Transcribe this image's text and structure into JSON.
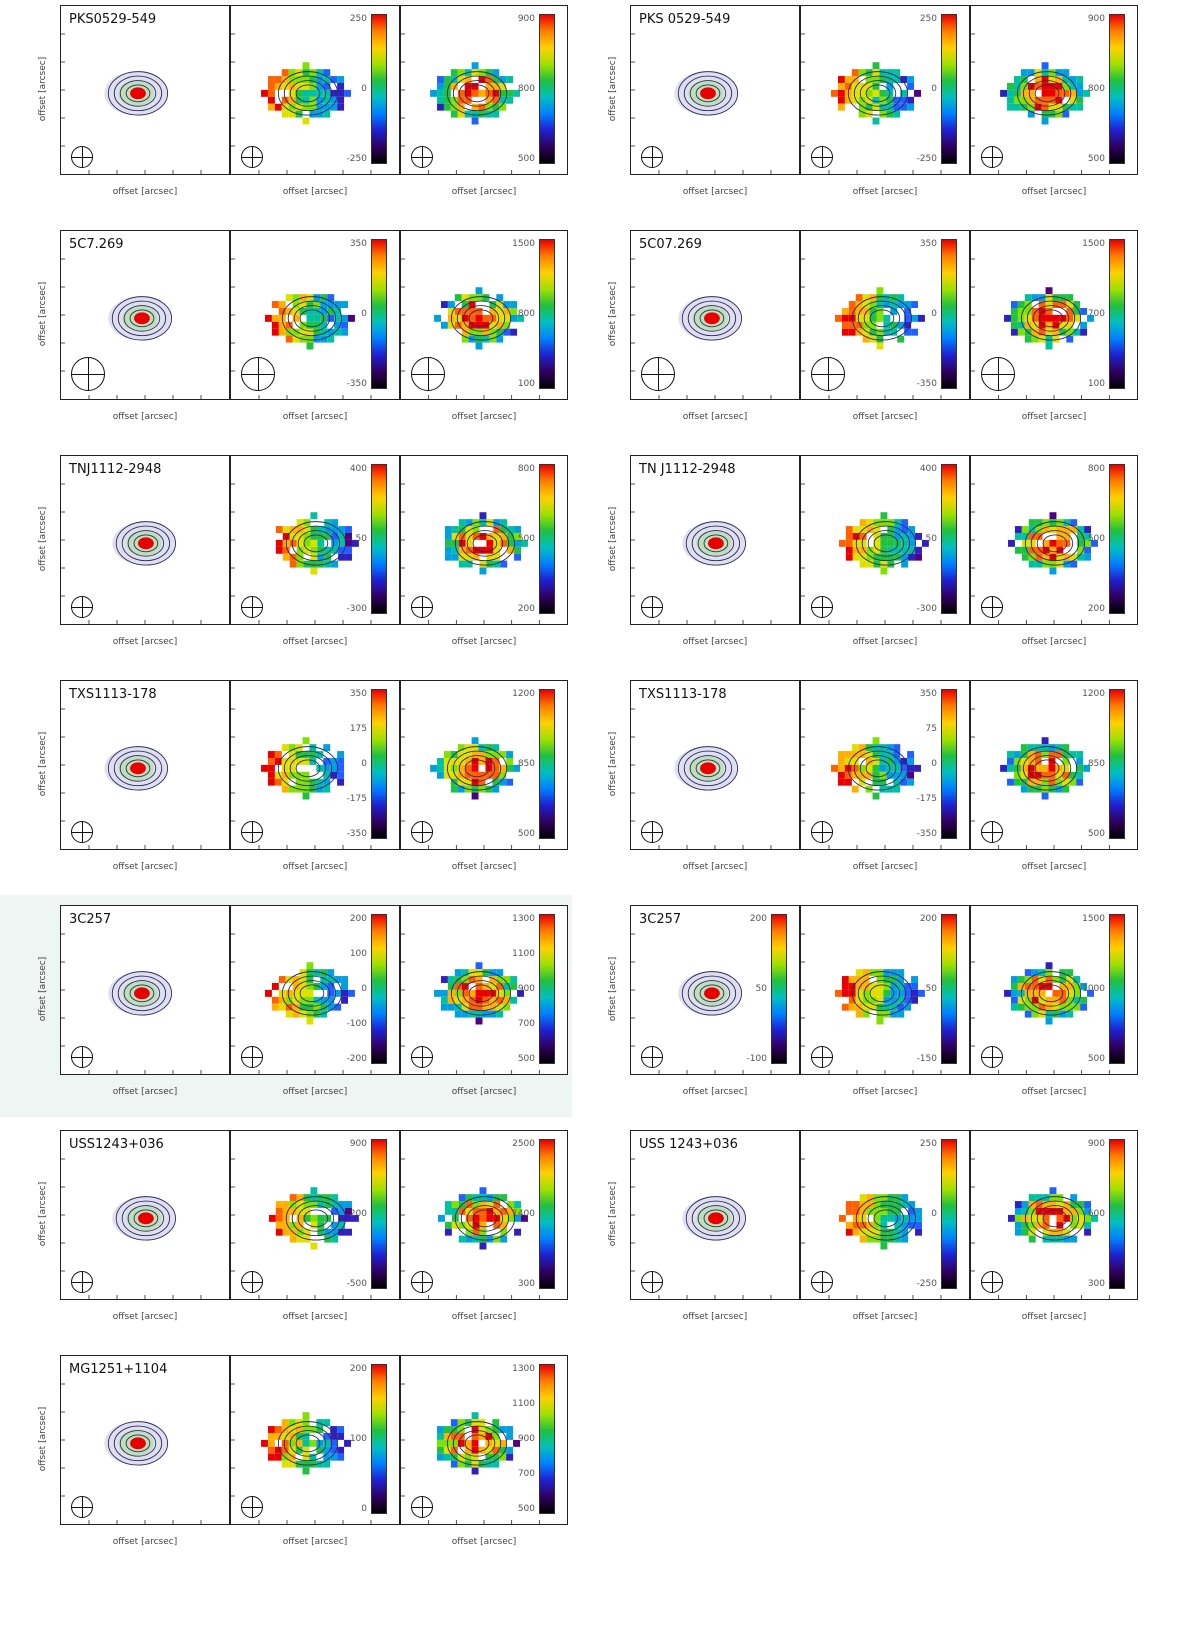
{
  "figure": {
    "x_axis_label": "offset [arcsec]",
    "y_axis_label": "offset [arcsec]"
  },
  "rows": [
    {
      "left": {
        "name": "PKS0529-549",
        "cbar2": [
          "250",
          "0",
          "-250"
        ],
        "cbar3": [
          "900",
          "800",
          "500"
        ]
      },
      "right": {
        "name": "PKS 0529-549",
        "cbar2": [
          "250",
          "0",
          "-250"
        ],
        "cbar3": [
          "900",
          "800",
          "500"
        ]
      }
    },
    {
      "left": {
        "name": "5C7.269",
        "cbar2": [
          "350",
          "0",
          "-350"
        ],
        "cbar3": [
          "1500",
          "800",
          "100"
        ]
      },
      "right": {
        "name": "5C07.269",
        "cbar2": [
          "350",
          "0",
          "-350"
        ],
        "cbar3": [
          "1500",
          "700",
          "100"
        ]
      }
    },
    {
      "left": {
        "name": "TNJ1112-2948",
        "cbar2": [
          "400",
          "50",
          "-300"
        ],
        "cbar3": [
          "800",
          "500",
          "200"
        ]
      },
      "right": {
        "name": "TN J1112-2948",
        "cbar2": [
          "400",
          "50",
          "-300"
        ],
        "cbar3": [
          "800",
          "500",
          "200"
        ]
      }
    },
    {
      "left": {
        "name": "TXS1113-178",
        "cbar2": [
          "350",
          "175",
          "0",
          "-175",
          "-350"
        ],
        "cbar3": [
          "1200",
          "850",
          "500"
        ]
      },
      "right": {
        "name": "TXS1113-178",
        "cbar2": [
          "350",
          "75",
          "0",
          "-175",
          "-350"
        ],
        "cbar3": [
          "1200",
          "850",
          "500"
        ]
      }
    },
    {
      "left": {
        "name": "3C257",
        "cbar2": [
          "200",
          "100",
          "0",
          "-100",
          "-200"
        ],
        "cbar3": [
          "1300",
          "1100",
          "900",
          "700",
          "500"
        ]
      },
      "right": {
        "name": "3C257",
        "cbar1": [
          "200",
          "50",
          "-100"
        ],
        "cbar2": [
          "200",
          "50",
          "-150"
        ],
        "cbar3": [
          "1500",
          "1000",
          "500"
        ]
      }
    },
    {
      "left": {
        "name": "USS1243+036",
        "cbar2": [
          "900",
          "200",
          "-500"
        ],
        "cbar3": [
          "2500",
          "1400",
          "300"
        ]
      },
      "right": {
        "name": "USS 1243+036",
        "cbar2": [
          "250",
          "0",
          "-250"
        ],
        "cbar3": [
          "900",
          "600",
          "300"
        ]
      }
    },
    {
      "left": {
        "name": "MG1251+1104",
        "cbar2": [
          "200",
          "100",
          "0"
        ],
        "cbar3": [
          "1300",
          "1100",
          "900",
          "700",
          "500"
        ]
      }
    }
  ]
}
